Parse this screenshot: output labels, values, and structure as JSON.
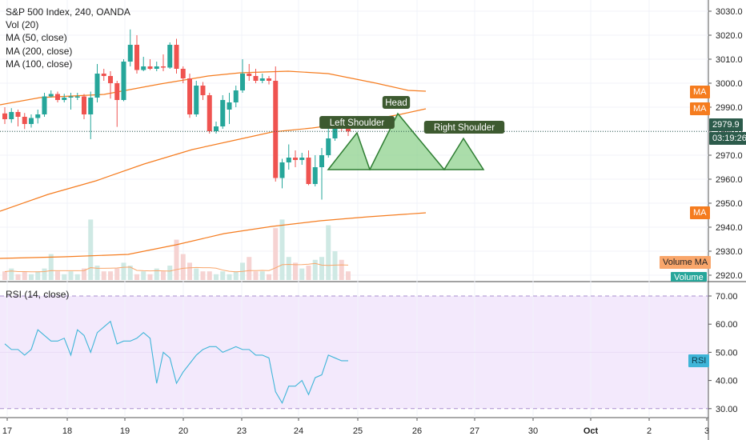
{
  "legend": {
    "title": "S&P 500 Index, 240, OANDA",
    "vol": "Vol (20)",
    "ma50": "MA (50, close)",
    "ma200": "MA (200, close)",
    "ma100": "MA (100, close)"
  },
  "rsi_title": "RSI (14, close)",
  "tags": {
    "ma1": "MA",
    "ma2": "MA",
    "price": "2979.9",
    "countdown": "03:19:26",
    "ma3": "MA",
    "volume_ma": "Volume MA",
    "volume": "Volume",
    "rsi": "RSI"
  },
  "colors": {
    "up": "#26a69a",
    "down": "#ef5350",
    "ma": "#f57c1f",
    "rsi_line": "#3fb5d8",
    "rsi_band": "#f3e9fc",
    "pattern_fill": "#8fd18d",
    "pattern_stroke": "#2e7d32",
    "label_bg": "#3d5a30"
  },
  "chart_data": {
    "type": "candlestick",
    "title": "S&P 500 Index, 240, OANDA",
    "price_axis": {
      "ticks": [
        3030.0,
        3020.0,
        3010.0,
        3000.0,
        2990.0,
        2980.0,
        2970.0,
        2960.0,
        2950.0,
        2940.0,
        2930.0,
        2920.0
      ],
      "range": [
        2913,
        3033
      ]
    },
    "x_ticks": [
      "17",
      "18",
      "19",
      "20",
      "23",
      "24",
      "25",
      "26",
      "27",
      "30",
      "Oct",
      "2",
      "3"
    ],
    "candles": [
      {
        "o": 2987.4,
        "c": 2985.0,
        "h": 2990.0,
        "l": 2983.0
      },
      {
        "o": 2985.0,
        "c": 2988.0,
        "h": 2989.6,
        "l": 2983.5
      },
      {
        "o": 2988.0,
        "c": 2986.0,
        "h": 2989.0,
        "l": 2982.0
      },
      {
        "o": 2986.0,
        "c": 2983.0,
        "h": 2987.6,
        "l": 2980.9
      },
      {
        "o": 2983.0,
        "c": 2985.5,
        "h": 2987.0,
        "l": 2981.5
      },
      {
        "o": 2985.5,
        "c": 2987.0,
        "h": 2989.0,
        "l": 2983.2
      },
      {
        "o": 2987.0,
        "c": 2994.5,
        "h": 2996.0,
        "l": 2986.0
      },
      {
        "o": 2994.5,
        "c": 2995.5,
        "h": 2997.0,
        "l": 2994.0
      },
      {
        "o": 2995.5,
        "c": 2993.0,
        "h": 2996.5,
        "l": 2992.0
      },
      {
        "o": 2993.0,
        "c": 2994.0,
        "h": 2995.6,
        "l": 2992.0
      },
      {
        "o": 2994.0,
        "c": 2994.5,
        "h": 2996.0,
        "l": 2989.0
      },
      {
        "o": 2994.0,
        "c": 2994.5,
        "h": 2996.0,
        "l": 2993.0
      },
      {
        "o": 2994.5,
        "c": 2987.0,
        "h": 2995.5,
        "l": 2985.0
      },
      {
        "o": 2987.0,
        "c": 2994.0,
        "h": 2996.5,
        "l": 2976.7
      },
      {
        "o": 2994.0,
        "c": 3004.0,
        "h": 3008.0,
        "l": 2992.0
      },
      {
        "o": 3004.0,
        "c": 3003.0,
        "h": 3006.0,
        "l": 3001.0
      },
      {
        "o": 3003.0,
        "c": 3000.0,
        "h": 3005.0,
        "l": 2993.6
      },
      {
        "o": 3000.0,
        "c": 2993.0,
        "h": 3001.0,
        "l": 2981.8
      },
      {
        "o": 2993.0,
        "c": 3009.0,
        "h": 3010.0,
        "l": 2992.5
      },
      {
        "o": 3009.0,
        "c": 3016.0,
        "h": 3022.4,
        "l": 3007.0
      },
      {
        "o": 3016.0,
        "c": 3005.5,
        "h": 3020.0,
        "l": 3004.0
      },
      {
        "o": 3005.5,
        "c": 3007.0,
        "h": 3011.0,
        "l": 3005.0
      },
      {
        "o": 3007.0,
        "c": 3006.0,
        "h": 3010.0,
        "l": 3005.5
      },
      {
        "o": 3006.0,
        "c": 3007.0,
        "h": 3009.0,
        "l": 3005.0
      },
      {
        "o": 3007.0,
        "c": 3006.5,
        "h": 3012.0,
        "l": 3005.0
      },
      {
        "o": 3006.5,
        "c": 3016.0,
        "h": 3017.0,
        "l": 3006.0
      },
      {
        "o": 3016.0,
        "c": 3006.0,
        "h": 3018.5,
        "l": 3004.0
      },
      {
        "o": 3006.0,
        "c": 3002.0,
        "h": 3007.0,
        "l": 3000.0
      },
      {
        "o": 3002.0,
        "c": 2987.0,
        "h": 3004.0,
        "l": 2985.6
      },
      {
        "o": 2987.0,
        "c": 2999.0,
        "h": 3001.0,
        "l": 2986.0
      },
      {
        "o": 2999.0,
        "c": 2995.0,
        "h": 3000.5,
        "l": 2993.0
      },
      {
        "o": 2995.0,
        "c": 2980.0,
        "h": 2996.0,
        "l": 2979.0
      },
      {
        "o": 2980.0,
        "c": 2982.0,
        "h": 2984.0,
        "l": 2979.0
      },
      {
        "o": 2982.0,
        "c": 2993.0,
        "h": 2995.0,
        "l": 2981.0
      },
      {
        "o": 2989.0,
        "c": 2992.0,
        "h": 2996.0,
        "l": 2983.0
      },
      {
        "o": 2992.0,
        "c": 2997.0,
        "h": 2999.0,
        "l": 2990.0
      },
      {
        "o": 2997.0,
        "c": 3004.0,
        "h": 3010.0,
        "l": 2996.0
      },
      {
        "o": 3004.0,
        "c": 3003.0,
        "h": 3008.0,
        "l": 3001.0
      },
      {
        "o": 3003.0,
        "c": 3001.0,
        "h": 3006.0,
        "l": 3000.0
      },
      {
        "o": 3001.0,
        "c": 3002.0,
        "h": 3004.0,
        "l": 3000.0
      },
      {
        "o": 3002.0,
        "c": 3001.0,
        "h": 3003.0,
        "l": 2999.5
      },
      {
        "o": 3001.0,
        "c": 2960.5,
        "h": 3007.0,
        "l": 2959.0
      },
      {
        "o": 2960.5,
        "c": 2967.0,
        "h": 2968.5,
        "l": 2956.2
      },
      {
        "o": 2967.0,
        "c": 2969.0,
        "h": 2974.5,
        "l": 2964.0
      },
      {
        "o": 2969.0,
        "c": 2968.0,
        "h": 2972.0,
        "l": 2965.0
      },
      {
        "o": 2968.0,
        "c": 2969.0,
        "h": 2971.0,
        "l": 2966.0
      },
      {
        "o": 2969.0,
        "c": 2958.0,
        "h": 2972.0,
        "l": 2957.5
      },
      {
        "o": 2958.0,
        "c": 2965.0,
        "h": 2970.0,
        "l": 2957.0
      },
      {
        "o": 2965.0,
        "c": 2970.0,
        "h": 2973.0,
        "l": 2951.5
      },
      {
        "o": 2970.0,
        "c": 2977.0,
        "h": 2984.0,
        "l": 2969.0
      },
      {
        "o": 2977.0,
        "c": 2984.0,
        "h": 2985.0,
        "l": 2976.0
      },
      {
        "o": 2984.0,
        "c": 2981.0,
        "h": 2986.0,
        "l": 2980.0
      },
      {
        "o": 2981.0,
        "c": 2979.9,
        "h": 2983.0,
        "l": 2978.0
      }
    ],
    "annotations": [
      "Head",
      "Left Shoulder",
      "Right Shoulder"
    ],
    "rsi": {
      "title": "RSI (14, close)",
      "ticks": [
        70.0,
        60.0,
        50.0,
        40.0,
        30.0
      ],
      "range": [
        27,
        72
      ],
      "band": [
        30,
        70
      ],
      "values": [
        53,
        51,
        51,
        49,
        51,
        58,
        56,
        54,
        54,
        55,
        49,
        58,
        56,
        50,
        57,
        59,
        61,
        53,
        54,
        54,
        55,
        57,
        55,
        39,
        50,
        48,
        39,
        43,
        46,
        49,
        51,
        52,
        52,
        50,
        51,
        52,
        51,
        51,
        49,
        49,
        48,
        36,
        32,
        38,
        38,
        40,
        35,
        41,
        42,
        49,
        48,
        47,
        47
      ]
    }
  }
}
